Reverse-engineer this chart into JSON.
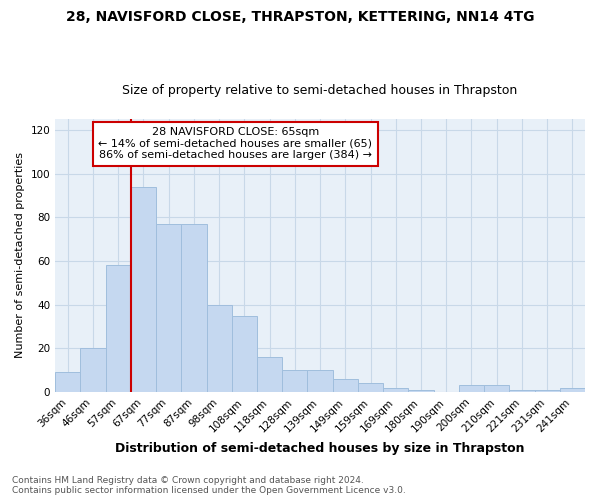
{
  "title": "28, NAVISFORD CLOSE, THRAPSTON, KETTERING, NN14 4TG",
  "subtitle": "Size of property relative to semi-detached houses in Thrapston",
  "xlabel": "Distribution of semi-detached houses by size in Thrapston",
  "ylabel": "Number of semi-detached properties",
  "categories": [
    "36sqm",
    "46sqm",
    "57sqm",
    "67sqm",
    "77sqm",
    "87sqm",
    "98sqm",
    "108sqm",
    "118sqm",
    "128sqm",
    "139sqm",
    "149sqm",
    "159sqm",
    "169sqm",
    "180sqm",
    "190sqm",
    "200sqm",
    "210sqm",
    "221sqm",
    "231sqm",
    "241sqm"
  ],
  "values": [
    9,
    20,
    58,
    94,
    77,
    77,
    40,
    35,
    16,
    10,
    10,
    6,
    4,
    2,
    1,
    0,
    3,
    3,
    1,
    1,
    2
  ],
  "bar_color": "#c5d8f0",
  "bar_edge_color": "#a0bedd",
  "ylim": [
    0,
    125
  ],
  "yticks": [
    0,
    20,
    40,
    60,
    80,
    100,
    120
  ],
  "vline_bar_index": 3,
  "annotation_line1": "28 NAVISFORD CLOSE: 65sqm",
  "annotation_line2": "← 14% of semi-detached houses are smaller (65)",
  "annotation_line3": "86% of semi-detached houses are larger (384) →",
  "annotation_box_color": "#ffffff",
  "annotation_box_edge_color": "#cc0000",
  "property_vline_color": "#cc0000",
  "grid_color": "#c8d8e8",
  "plot_bg_color": "#e8f0f8",
  "fig_bg_color": "#ffffff",
  "footer_line1": "Contains HM Land Registry data © Crown copyright and database right 2024.",
  "footer_line2": "Contains public sector information licensed under the Open Government Licence v3.0.",
  "title_fontsize": 10,
  "subtitle_fontsize": 9,
  "ylabel_fontsize": 8,
  "xlabel_fontsize": 9,
  "tick_fontsize": 7.5,
  "footer_fontsize": 6.5
}
